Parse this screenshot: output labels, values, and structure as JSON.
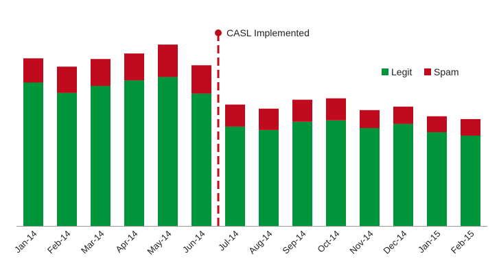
{
  "chart_data": {
    "type": "bar",
    "stacked": true,
    "title": "",
    "xlabel": "",
    "ylabel": "",
    "categories": [
      "Jan-14",
      "Feb-14",
      "Mar-14",
      "Apr-14",
      "May-14",
      "Jun-14",
      "Jul-14",
      "Aug-14",
      "Sep-14",
      "Oct-14",
      "Nov-14",
      "Dec-14",
      "Jan-15",
      "Feb-15"
    ],
    "series": [
      {
        "name": "Legit",
        "color": "#00953a",
        "values": [
          208,
          193,
          203,
          211,
          216,
          192,
          144,
          139,
          151,
          153,
          142,
          148,
          136,
          131
        ]
      },
      {
        "name": "Spam",
        "color": "#c00a1e",
        "values": [
          35,
          38,
          39,
          39,
          47,
          41,
          32,
          31,
          32,
          32,
          26,
          25,
          23,
          24
        ]
      }
    ],
    "ylim": [
      0,
      270
    ],
    "grid": false,
    "legend_position": "top-right",
    "annotation": {
      "label": "CASL Implemented",
      "category_between": [
        "Jun-14",
        "Jul-14"
      ],
      "line_style": "dashed",
      "color": "#c00a1e"
    }
  }
}
